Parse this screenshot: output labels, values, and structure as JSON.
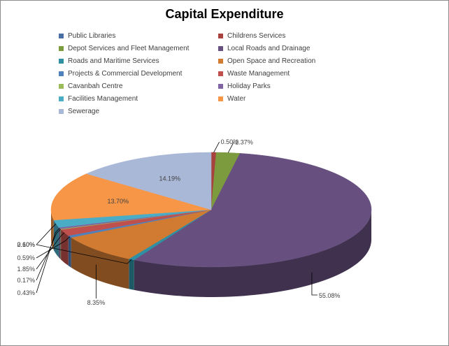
{
  "chart_data": {
    "type": "pie",
    "title": "Capital Expenditure",
    "legend_position": "top",
    "slices": [
      {
        "name": "Public Libraries",
        "value": 0.0,
        "label": "",
        "color": "#4a6fa5"
      },
      {
        "name": "Childrens Services",
        "value": 0.5,
        "label": "0.50%",
        "color": "#a8423f"
      },
      {
        "name": "Depot Services and Fleet Management",
        "value": 2.37,
        "label": "2.37%",
        "color": "#7c9a3e"
      },
      {
        "name": "Local Roads and Drainage",
        "value": 55.08,
        "label": "55.08%",
        "color": "#67507f"
      },
      {
        "name": "Roads and Maritime Services",
        "value": 0.6,
        "label": "0.60%",
        "color": "#2f8fa3"
      },
      {
        "name": "Open Space and Recreation",
        "value": 8.35,
        "label": "8.35%",
        "color": "#d07a32"
      },
      {
        "name": "Projects & Commercial Development",
        "value": 0.59,
        "label": "0.59%",
        "color": "#4f81bd"
      },
      {
        "name": "Waste Management",
        "value": 1.85,
        "label": "1.85%",
        "color": "#c0504d"
      },
      {
        "name": "Cavanbah Centre",
        "value": 0.17,
        "label": "0.17%",
        "color": "#9bbb59"
      },
      {
        "name": "Holiday Parks",
        "value": 0.43,
        "label": "0.43%",
        "color": "#8064a2"
      },
      {
        "name": "Facilities Management",
        "value": 2.1,
        "label": "2.10%",
        "color": "#4bacc6"
      },
      {
        "name": "Water",
        "value": 13.7,
        "label": "13.70%",
        "color": "#f79646"
      },
      {
        "name": "Sewerage",
        "value": 14.19,
        "label": "14.19%",
        "color": "#aab8d8"
      }
    ]
  }
}
